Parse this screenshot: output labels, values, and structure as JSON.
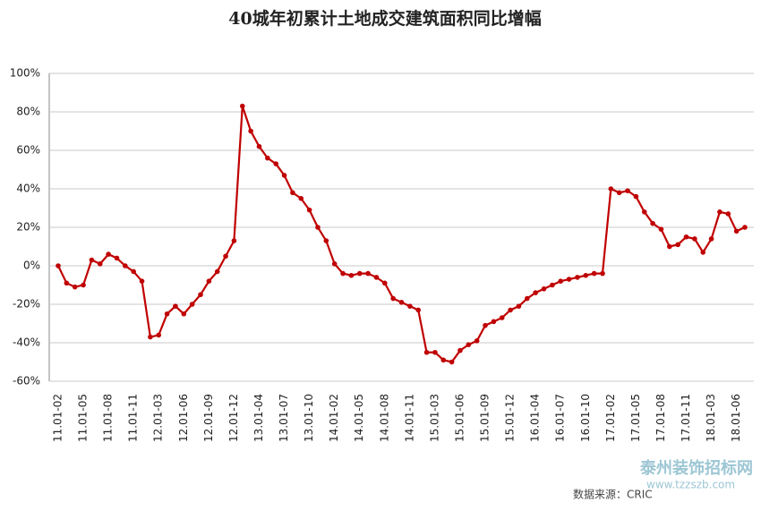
{
  "chart_data": {
    "type": "line",
    "title": "40城年初累计土地成交建筑面积同比增幅",
    "categories": [
      "11.01-02",
      null,
      null,
      "11.01-05",
      null,
      null,
      "11.01-08",
      null,
      null,
      "11.01-11",
      null,
      null,
      "12.01-03",
      null,
      null,
      "12.01-06",
      null,
      null,
      "12.01-09",
      null,
      null,
      "12.01-12",
      null,
      null,
      "13.01-04",
      null,
      null,
      "13.01-07",
      null,
      null,
      "13.01-10",
      null,
      null,
      "14.01-02",
      null,
      null,
      "14.01-05",
      null,
      null,
      "14.01-08",
      null,
      null,
      "14.01-11",
      null,
      null,
      "15.01-03",
      null,
      null,
      "15.01-06",
      null,
      null,
      "15.01-09",
      null,
      null,
      "15.01-12",
      null,
      null,
      "16.01-04",
      null,
      null,
      "16.01-07",
      null,
      null,
      "16.01-10",
      null,
      null,
      "17.01-02",
      null,
      null,
      "17.01-05",
      null,
      null,
      "17.01-08",
      null,
      null,
      "17.01-11",
      null,
      null,
      "18.01-03",
      null,
      null,
      "18.01-06",
      null
    ],
    "series": [
      {
        "name": "同比增幅",
        "color": "#c00000",
        "values": [
          0,
          -9,
          -11,
          -10,
          3,
          1,
          6,
          4,
          0,
          -3,
          -8,
          -37,
          -36,
          -25,
          -21,
          -25,
          -20,
          -15,
          -8,
          -3,
          5,
          13,
          83,
          70,
          62,
          56,
          53,
          47,
          38,
          35,
          29,
          20,
          13,
          1,
          -4,
          -5,
          -4,
          -4,
          -6,
          -9,
          -17,
          -19,
          -21,
          -23,
          -45,
          -45,
          -49,
          -50,
          -44,
          -41,
          -39,
          -31,
          -29,
          -27,
          -23,
          -21,
          -17,
          -14,
          -12,
          -10,
          -8,
          -7,
          -6,
          -5,
          -4,
          -4,
          40,
          38,
          39,
          36,
          28,
          22,
          19,
          10,
          11,
          15,
          14,
          7,
          14,
          28,
          27,
          18,
          20
        ]
      }
    ],
    "ylim": [
      -60,
      100
    ],
    "yticks": [
      {
        "value": -60,
        "label": "-60%"
      },
      {
        "value": -40,
        "label": "-40%"
      },
      {
        "value": -20,
        "label": "-20%"
      },
      {
        "value": 0,
        "label": "0%"
      },
      {
        "value": 20,
        "label": "20%"
      },
      {
        "value": 40,
        "label": "40%"
      },
      {
        "value": 60,
        "label": "60%"
      },
      {
        "value": 80,
        "label": "80%"
      },
      {
        "value": 100,
        "label": "100%"
      }
    ],
    "grid": true,
    "source": "数据来源：CRIC",
    "watermark": "泰州装饰招标网",
    "watermark_url": "www.tzzszb.com"
  }
}
